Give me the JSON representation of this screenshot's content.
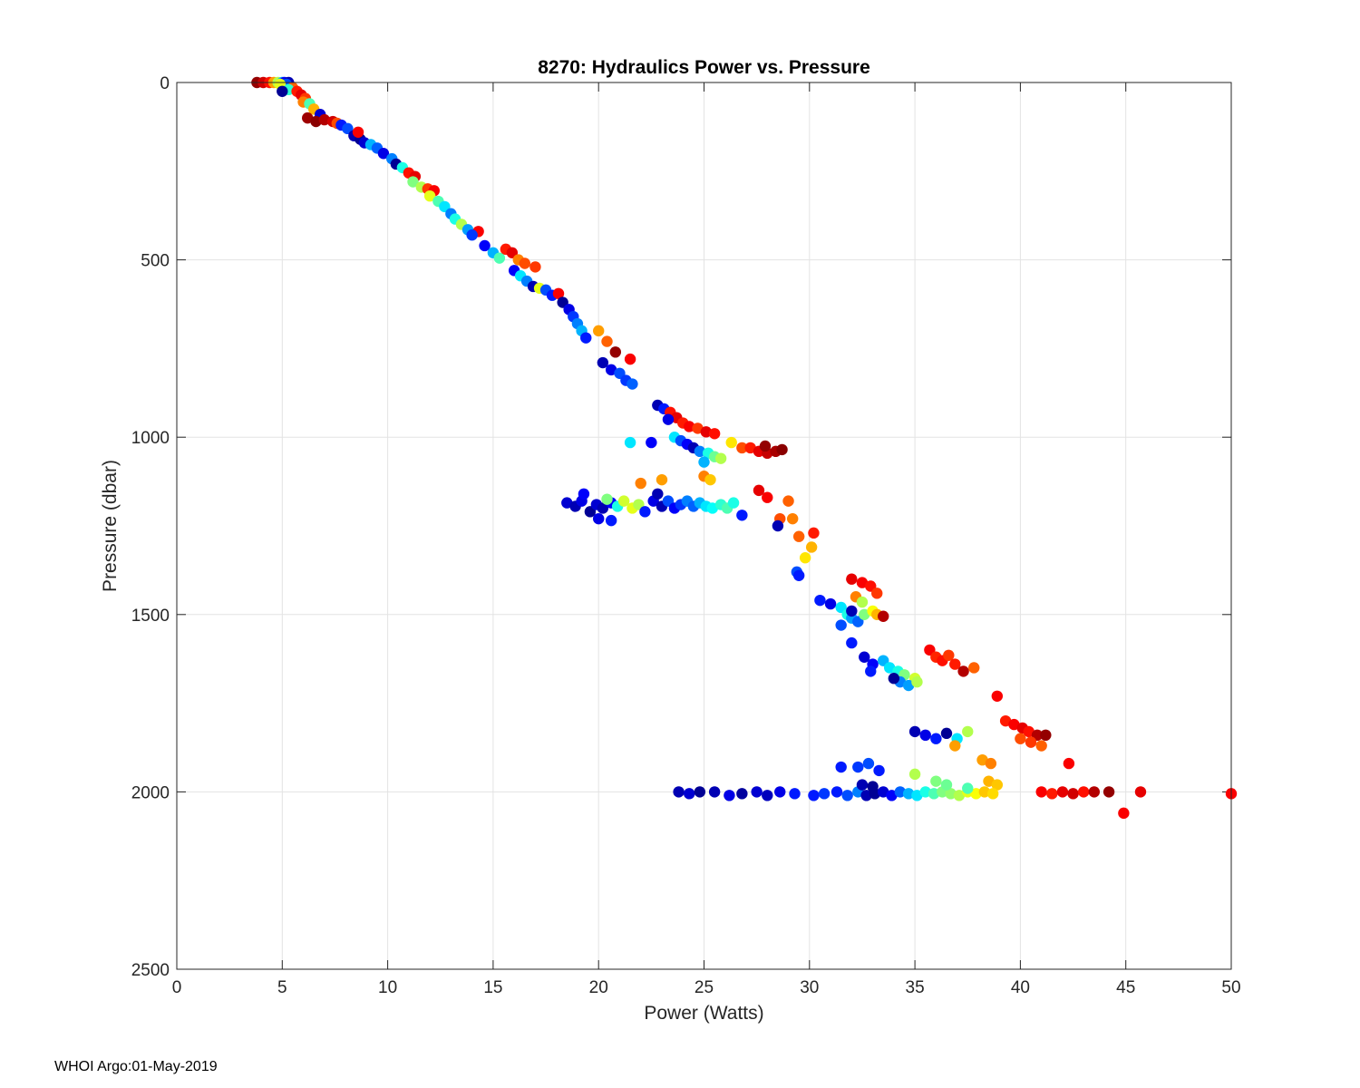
{
  "footer": "WHOI Argo:01-May-2019",
  "chart_data": {
    "type": "scatter",
    "title": "8270: Hydraulics Power vs. Pressure",
    "xlabel": "Power (Watts)",
    "ylabel": "Pressure (dbar)",
    "xlim": [
      0,
      50
    ],
    "ylim": [
      0,
      2500
    ],
    "y_reversed": true,
    "grid": true,
    "x_ticks": [
      0,
      5,
      10,
      15,
      20,
      25,
      30,
      35,
      40,
      45,
      50
    ],
    "y_ticks": [
      0,
      500,
      1000,
      1500,
      2000,
      2500
    ],
    "x_tick_labels": [
      "0",
      "5",
      "10",
      "15",
      "20",
      "25",
      "30",
      "35",
      "40",
      "45",
      "50"
    ],
    "y_tick_labels": [
      "0",
      "500",
      "1000",
      "1500",
      "2000",
      "2500"
    ],
    "colormap": "jet",
    "colormap_stops": [
      "#000080",
      "#0000ff",
      "#0080ff",
      "#00ffff",
      "#80ff80",
      "#ffff00",
      "#ff8000",
      "#ff0000",
      "#800000"
    ],
    "color_note": "point color encodes profile index (normalized 0-1, jet colormap)",
    "points": [
      [
        3.8,
        0,
        0.98
      ],
      [
        4.1,
        0,
        0.92
      ],
      [
        4.4,
        0,
        0.86
      ],
      [
        4.6,
        0,
        0.72
      ],
      [
        4.8,
        0,
        0.55
      ],
      [
        5.0,
        0,
        0.3
      ],
      [
        5.1,
        0,
        0.12
      ],
      [
        5.3,
        0,
        0.05
      ],
      [
        5.2,
        5,
        0.2
      ],
      [
        4.9,
        5,
        0.6
      ],
      [
        5.5,
        15,
        0.78
      ],
      [
        5.3,
        20,
        0.42
      ],
      [
        5.7,
        25,
        0.85
      ],
      [
        5.0,
        25,
        0.02
      ],
      [
        5.9,
        35,
        0.9
      ],
      [
        6.1,
        45,
        0.82
      ],
      [
        6.0,
        55,
        0.75
      ],
      [
        6.3,
        60,
        0.45
      ],
      [
        6.5,
        75,
        0.7
      ],
      [
        6.8,
        90,
        0.08
      ],
      [
        6.2,
        100,
        0.97
      ],
      [
        6.6,
        110,
        0.99
      ],
      [
        7.0,
        105,
        0.95
      ],
      [
        7.4,
        110,
        0.92
      ],
      [
        7.6,
        115,
        0.8
      ],
      [
        7.8,
        120,
        0.15
      ],
      [
        8.1,
        130,
        0.2
      ],
      [
        8.4,
        150,
        0.05
      ],
      [
        8.7,
        160,
        0.02
      ],
      [
        8.9,
        170,
        0.08
      ],
      [
        8.6,
        140,
        0.88
      ],
      [
        9.2,
        175,
        0.3
      ],
      [
        9.5,
        185,
        0.22
      ],
      [
        9.8,
        200,
        0.1
      ],
      [
        10.2,
        215,
        0.25
      ],
      [
        10.4,
        230,
        0.02
      ],
      [
        10.7,
        240,
        0.4
      ],
      [
        11.0,
        255,
        0.86
      ],
      [
        11.3,
        265,
        0.9
      ],
      [
        11.2,
        280,
        0.5
      ],
      [
        11.6,
        295,
        0.55
      ],
      [
        11.9,
        300,
        0.82
      ],
      [
        12.2,
        305,
        0.88
      ],
      [
        12.0,
        320,
        0.6
      ],
      [
        12.4,
        335,
        0.45
      ],
      [
        12.7,
        350,
        0.35
      ],
      [
        13.0,
        370,
        0.25
      ],
      [
        13.2,
        385,
        0.4
      ],
      [
        13.5,
        400,
        0.55
      ],
      [
        13.8,
        415,
        0.28
      ],
      [
        14.3,
        420,
        0.88
      ],
      [
        14.0,
        430,
        0.18
      ],
      [
        14.6,
        460,
        0.12
      ],
      [
        15.0,
        480,
        0.3
      ],
      [
        15.3,
        495,
        0.45
      ],
      [
        15.6,
        470,
        0.85
      ],
      [
        15.9,
        480,
        0.9
      ],
      [
        16.2,
        500,
        0.75
      ],
      [
        16.5,
        510,
        0.8
      ],
      [
        17.0,
        520,
        0.82
      ],
      [
        16.0,
        530,
        0.12
      ],
      [
        16.3,
        545,
        0.35
      ],
      [
        16.6,
        560,
        0.25
      ],
      [
        16.9,
        575,
        0.05
      ],
      [
        17.2,
        580,
        0.6
      ],
      [
        17.5,
        585,
        0.2
      ],
      [
        17.8,
        600,
        0.15
      ],
      [
        18.1,
        595,
        0.88
      ],
      [
        18.3,
        620,
        0.02
      ],
      [
        18.6,
        640,
        0.1
      ],
      [
        18.8,
        660,
        0.18
      ],
      [
        19.0,
        680,
        0.25
      ],
      [
        19.2,
        700,
        0.3
      ],
      [
        19.4,
        720,
        0.15
      ],
      [
        20.0,
        700,
        0.72
      ],
      [
        20.4,
        730,
        0.78
      ],
      [
        20.8,
        760,
        0.98
      ],
      [
        21.5,
        780,
        0.88
      ],
      [
        20.2,
        790,
        0.05
      ],
      [
        20.6,
        810,
        0.1
      ],
      [
        21.0,
        820,
        0.2
      ],
      [
        21.3,
        840,
        0.18
      ],
      [
        21.6,
        850,
        0.22
      ],
      [
        22.8,
        910,
        0.05
      ],
      [
        23.1,
        920,
        0.15
      ],
      [
        23.4,
        930,
        0.86
      ],
      [
        23.7,
        945,
        0.9
      ],
      [
        24.0,
        960,
        0.85
      ],
      [
        24.3,
        970,
        0.88
      ],
      [
        24.7,
        975,
        0.82
      ],
      [
        25.1,
        985,
        0.9
      ],
      [
        25.5,
        990,
        0.86
      ],
      [
        23.3,
        950,
        0.1
      ],
      [
        23.6,
        1000,
        0.35
      ],
      [
        23.9,
        1010,
        0.2
      ],
      [
        24.2,
        1020,
        0.12
      ],
      [
        24.5,
        1030,
        0.05
      ],
      [
        24.8,
        1040,
        0.25
      ],
      [
        25.2,
        1045,
        0.4
      ],
      [
        25.5,
        1055,
        0.48
      ],
      [
        25.8,
        1060,
        0.55
      ],
      [
        25.0,
        1070,
        0.3
      ],
      [
        26.3,
        1015,
        0.65
      ],
      [
        26.8,
        1030,
        0.8
      ],
      [
        27.2,
        1030,
        0.85
      ],
      [
        27.6,
        1040,
        0.9
      ],
      [
        28.0,
        1045,
        0.93
      ],
      [
        28.4,
        1040,
        0.96
      ],
      [
        27.9,
        1025,
        0.98
      ],
      [
        28.7,
        1035,
        0.99
      ],
      [
        21.5,
        1015,
        0.35
      ],
      [
        22.5,
        1015,
        0.12
      ],
      [
        22.0,
        1130,
        0.75
      ],
      [
        23.0,
        1120,
        0.72
      ],
      [
        25.0,
        1110,
        0.75
      ],
      [
        25.3,
        1120,
        0.68
      ],
      [
        27.6,
        1150,
        0.9
      ],
      [
        28.0,
        1170,
        0.88
      ],
      [
        29.0,
        1180,
        0.78
      ],
      [
        28.6,
        1230,
        0.8
      ],
      [
        29.2,
        1230,
        0.75
      ],
      [
        28.5,
        1250,
        0.05
      ],
      [
        29.5,
        1280,
        0.78
      ],
      [
        30.2,
        1270,
        0.85
      ],
      [
        30.1,
        1310,
        0.7
      ],
      [
        29.8,
        1340,
        0.65
      ],
      [
        29.4,
        1380,
        0.2
      ],
      [
        29.5,
        1390,
        0.15
      ],
      [
        30.5,
        1460,
        0.15
      ],
      [
        31.0,
        1470,
        0.1
      ],
      [
        31.5,
        1480,
        0.35
      ],
      [
        31.8,
        1500,
        0.4
      ],
      [
        32.0,
        1510,
        0.28
      ],
      [
        32.3,
        1520,
        0.22
      ],
      [
        32.6,
        1500,
        0.5
      ],
      [
        33.0,
        1490,
        0.62
      ],
      [
        33.2,
        1500,
        0.7
      ],
      [
        33.5,
        1505,
        0.95
      ],
      [
        32.0,
        1400,
        0.9
      ],
      [
        32.5,
        1410,
        0.88
      ],
      [
        32.9,
        1420,
        0.86
      ],
      [
        33.2,
        1440,
        0.82
      ],
      [
        32.2,
        1450,
        0.75
      ],
      [
        32.5,
        1465,
        0.55
      ],
      [
        32.0,
        1490,
        0.05
      ],
      [
        31.5,
        1530,
        0.2
      ],
      [
        32.0,
        1580,
        0.15
      ],
      [
        32.6,
        1620,
        0.08
      ],
      [
        33.0,
        1640,
        0.12
      ],
      [
        32.9,
        1660,
        0.15
      ],
      [
        33.5,
        1630,
        0.3
      ],
      [
        33.8,
        1650,
        0.35
      ],
      [
        34.2,
        1660,
        0.4
      ],
      [
        34.5,
        1670,
        0.5
      ],
      [
        35.0,
        1680,
        0.58
      ],
      [
        34.3,
        1690,
        0.25
      ],
      [
        34.7,
        1700,
        0.28
      ],
      [
        35.1,
        1690,
        0.55
      ],
      [
        34.0,
        1680,
        0.02
      ],
      [
        35.7,
        1600,
        0.88
      ],
      [
        36.0,
        1620,
        0.84
      ],
      [
        36.3,
        1630,
        0.86
      ],
      [
        36.6,
        1615,
        0.82
      ],
      [
        36.9,
        1640,
        0.85
      ],
      [
        37.3,
        1660,
        0.95
      ],
      [
        37.8,
        1650,
        0.78
      ],
      [
        38.9,
        1730,
        0.88
      ],
      [
        39.3,
        1800,
        0.85
      ],
      [
        39.7,
        1810,
        0.88
      ],
      [
        40.1,
        1820,
        0.9
      ],
      [
        40.4,
        1830,
        0.86
      ],
      [
        40.8,
        1840,
        0.95
      ],
      [
        41.2,
        1840,
        0.98
      ],
      [
        40.0,
        1850,
        0.8
      ],
      [
        40.5,
        1860,
        0.82
      ],
      [
        41.0,
        1870,
        0.78
      ],
      [
        35.0,
        1830,
        0.05
      ],
      [
        35.5,
        1840,
        0.1
      ],
      [
        36.0,
        1850,
        0.15
      ],
      [
        36.5,
        1835,
        0.02
      ],
      [
        37.0,
        1850,
        0.35
      ],
      [
        37.5,
        1830,
        0.55
      ],
      [
        36.9,
        1870,
        0.72
      ],
      [
        38.2,
        1910,
        0.72
      ],
      [
        38.6,
        1920,
        0.75
      ],
      [
        42.3,
        1920,
        0.88
      ],
      [
        38.5,
        1970,
        0.7
      ],
      [
        38.9,
        1980,
        0.68
      ],
      [
        23.8,
        2000,
        0.05
      ],
      [
        24.3,
        2005,
        0.08
      ],
      [
        24.8,
        2000,
        0.02
      ],
      [
        25.5,
        2000,
        0.05
      ],
      [
        26.2,
        2010,
        0.1
      ],
      [
        26.8,
        2005,
        0.03
      ],
      [
        27.5,
        2000,
        0.08
      ],
      [
        28.0,
        2010,
        0.06
      ],
      [
        28.6,
        2000,
        0.1
      ],
      [
        29.3,
        2005,
        0.15
      ],
      [
        30.2,
        2010,
        0.15
      ],
      [
        30.7,
        2005,
        0.18
      ],
      [
        31.3,
        2000,
        0.15
      ],
      [
        31.8,
        2010,
        0.2
      ],
      [
        32.3,
        2000,
        0.25
      ],
      [
        32.7,
        2010,
        0.05
      ],
      [
        33.1,
        2005,
        0.02
      ],
      [
        33.5,
        2000,
        0.08
      ],
      [
        33.9,
        2010,
        0.12
      ],
      [
        34.3,
        2000,
        0.22
      ],
      [
        34.7,
        2005,
        0.3
      ],
      [
        35.1,
        2010,
        0.35
      ],
      [
        35.5,
        2000,
        0.4
      ],
      [
        35.9,
        2005,
        0.45
      ],
      [
        36.3,
        2000,
        0.5
      ],
      [
        36.7,
        2005,
        0.52
      ],
      [
        37.1,
        2010,
        0.55
      ],
      [
        37.5,
        2000,
        0.6
      ],
      [
        37.9,
        2005,
        0.62
      ],
      [
        38.3,
        2000,
        0.68
      ],
      [
        38.7,
        2005,
        0.66
      ],
      [
        31.5,
        1930,
        0.15
      ],
      [
        32.3,
        1930,
        0.18
      ],
      [
        32.8,
        1920,
        0.2
      ],
      [
        33.3,
        1940,
        0.15
      ],
      [
        32.5,
        1980,
        0.05
      ],
      [
        33.0,
        1985,
        0.02
      ],
      [
        35.0,
        1950,
        0.55
      ],
      [
        36.0,
        1970,
        0.5
      ],
      [
        36.5,
        1980,
        0.48
      ],
      [
        37.5,
        1990,
        0.45
      ],
      [
        41.0,
        2000,
        0.88
      ],
      [
        41.5,
        2005,
        0.85
      ],
      [
        42.0,
        2000,
        0.9
      ],
      [
        42.5,
        2005,
        0.92
      ],
      [
        43.0,
        2000,
        0.86
      ],
      [
        43.5,
        2000,
        0.95
      ],
      [
        44.2,
        2000,
        0.98
      ],
      [
        44.9,
        2060,
        0.88
      ],
      [
        45.7,
        2000,
        0.9
      ],
      [
        50.0,
        2005,
        0.88
      ],
      [
        18.5,
        1185,
        0.08
      ],
      [
        18.9,
        1195,
        0.05
      ],
      [
        19.2,
        1180,
        0.1
      ],
      [
        19.6,
        1210,
        0.02
      ],
      [
        19.9,
        1190,
        0.08
      ],
      [
        20.2,
        1200,
        0.05
      ],
      [
        20.6,
        1185,
        0.12
      ],
      [
        20.9,
        1195,
        0.4
      ],
      [
        21.2,
        1180,
        0.58
      ],
      [
        21.6,
        1200,
        0.6
      ],
      [
        21.9,
        1190,
        0.55
      ],
      [
        22.2,
        1210,
        0.15
      ],
      [
        22.6,
        1180,
        0.1
      ],
      [
        23.0,
        1195,
        0.05
      ],
      [
        23.3,
        1180,
        0.2
      ],
      [
        23.6,
        1200,
        0.12
      ],
      [
        23.9,
        1190,
        0.18
      ],
      [
        24.2,
        1180,
        0.25
      ],
      [
        24.5,
        1195,
        0.22
      ],
      [
        24.8,
        1185,
        0.3
      ],
      [
        25.1,
        1195,
        0.35
      ],
      [
        25.4,
        1200,
        0.38
      ],
      [
        25.8,
        1190,
        0.42
      ],
      [
        26.1,
        1200,
        0.45
      ],
      [
        26.4,
        1185,
        0.4
      ],
      [
        26.8,
        1220,
        0.15
      ],
      [
        20.0,
        1230,
        0.1
      ],
      [
        20.6,
        1235,
        0.15
      ],
      [
        19.3,
        1160,
        0.12
      ],
      [
        20.4,
        1175,
        0.5
      ],
      [
        22.8,
        1160,
        0.05
      ]
    ]
  }
}
